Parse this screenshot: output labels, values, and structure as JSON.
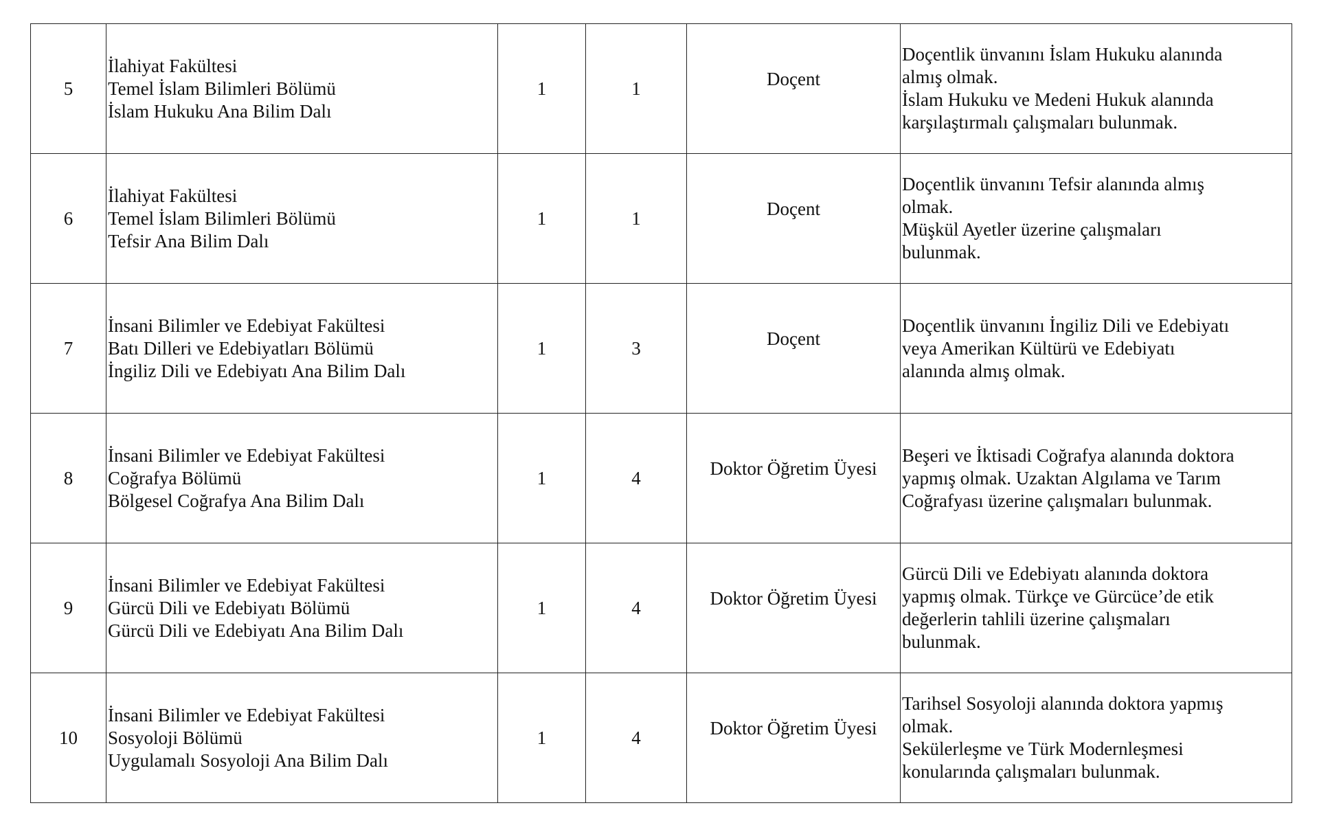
{
  "rows": [
    {
      "no": "5",
      "unit": [
        "İlahiyat Fakültesi",
        "Temel İslam Bilimleri Bölümü",
        "İslam Hukuku Ana Bilim Dalı"
      ],
      "count": "1",
      "degree": "1",
      "title": "Doçent",
      "requirements": [
        "Doçentlik ünvanını İslam Hukuku alanında",
        "almış olmak.",
        "İslam Hukuku ve Medeni Hukuk alanında",
        "karşılaştırmalı çalışmaları bulunmak."
      ]
    },
    {
      "no": "6",
      "unit": [
        "İlahiyat Fakültesi",
        "Temel İslam Bilimleri Bölümü",
        "Tefsir Ana Bilim Dalı"
      ],
      "count": "1",
      "degree": "1",
      "title": "Doçent",
      "requirements": [
        "Doçentlik ünvanını Tefsir alanında almış",
        "olmak.",
        "Müşkül Ayetler üzerine çalışmaları",
        "bulunmak."
      ]
    },
    {
      "no": "7",
      "unit": [
        "İnsani Bilimler ve Edebiyat Fakültesi",
        "Batı Dilleri ve Edebiyatları Bölümü",
        "İngiliz Dili ve Edebiyatı Ana Bilim Dalı"
      ],
      "count": "1",
      "degree": "3",
      "title": "Doçent",
      "requirements": [
        "Doçentlik ünvanını İngiliz Dili ve Edebiyatı",
        "veya Amerikan Kültürü ve Edebiyatı",
        "alanında almış olmak."
      ]
    },
    {
      "no": "8",
      "unit": [
        "İnsani Bilimler ve Edebiyat Fakültesi",
        "Coğrafya Bölümü",
        "Bölgesel Coğrafya Ana Bilim Dalı"
      ],
      "count": "1",
      "degree": "4",
      "title": "Doktor Öğretim Üyesi",
      "requirements": [
        "Beşeri ve İktisadi Coğrafya alanında doktora",
        "yapmış olmak. Uzaktan Algılama ve Tarım",
        "Coğrafyası üzerine çalışmaları bulunmak."
      ]
    },
    {
      "no": "9",
      "unit": [
        "İnsani Bilimler ve Edebiyat Fakültesi",
        "Gürcü Dili ve Edebiyatı Bölümü",
        "Gürcü Dili ve Edebiyatı Ana Bilim Dalı"
      ],
      "count": "1",
      "degree": "4",
      "title": "Doktor Öğretim Üyesi",
      "requirements": [
        "Gürcü Dili ve Edebiyatı alanında doktora",
        "yapmış olmak. Türkçe ve Gürcüce’de etik",
        "değerlerin tahlili üzerine çalışmaları",
        "bulunmak."
      ]
    },
    {
      "no": "10",
      "unit": [
        "İnsani Bilimler ve Edebiyat Fakültesi",
        "Sosyoloji Bölümü",
        "Uygulamalı Sosyoloji Ana Bilim Dalı"
      ],
      "count": "1",
      "degree": "4",
      "title": "Doktor Öğretim Üyesi",
      "requirements": [
        "Tarihsel Sosyoloji alanında doktora yapmış",
        "olmak.",
        "Sekülerleşme ve Türk Modernleşmesi",
        "konularında çalışmaları bulunmak."
      ]
    }
  ]
}
